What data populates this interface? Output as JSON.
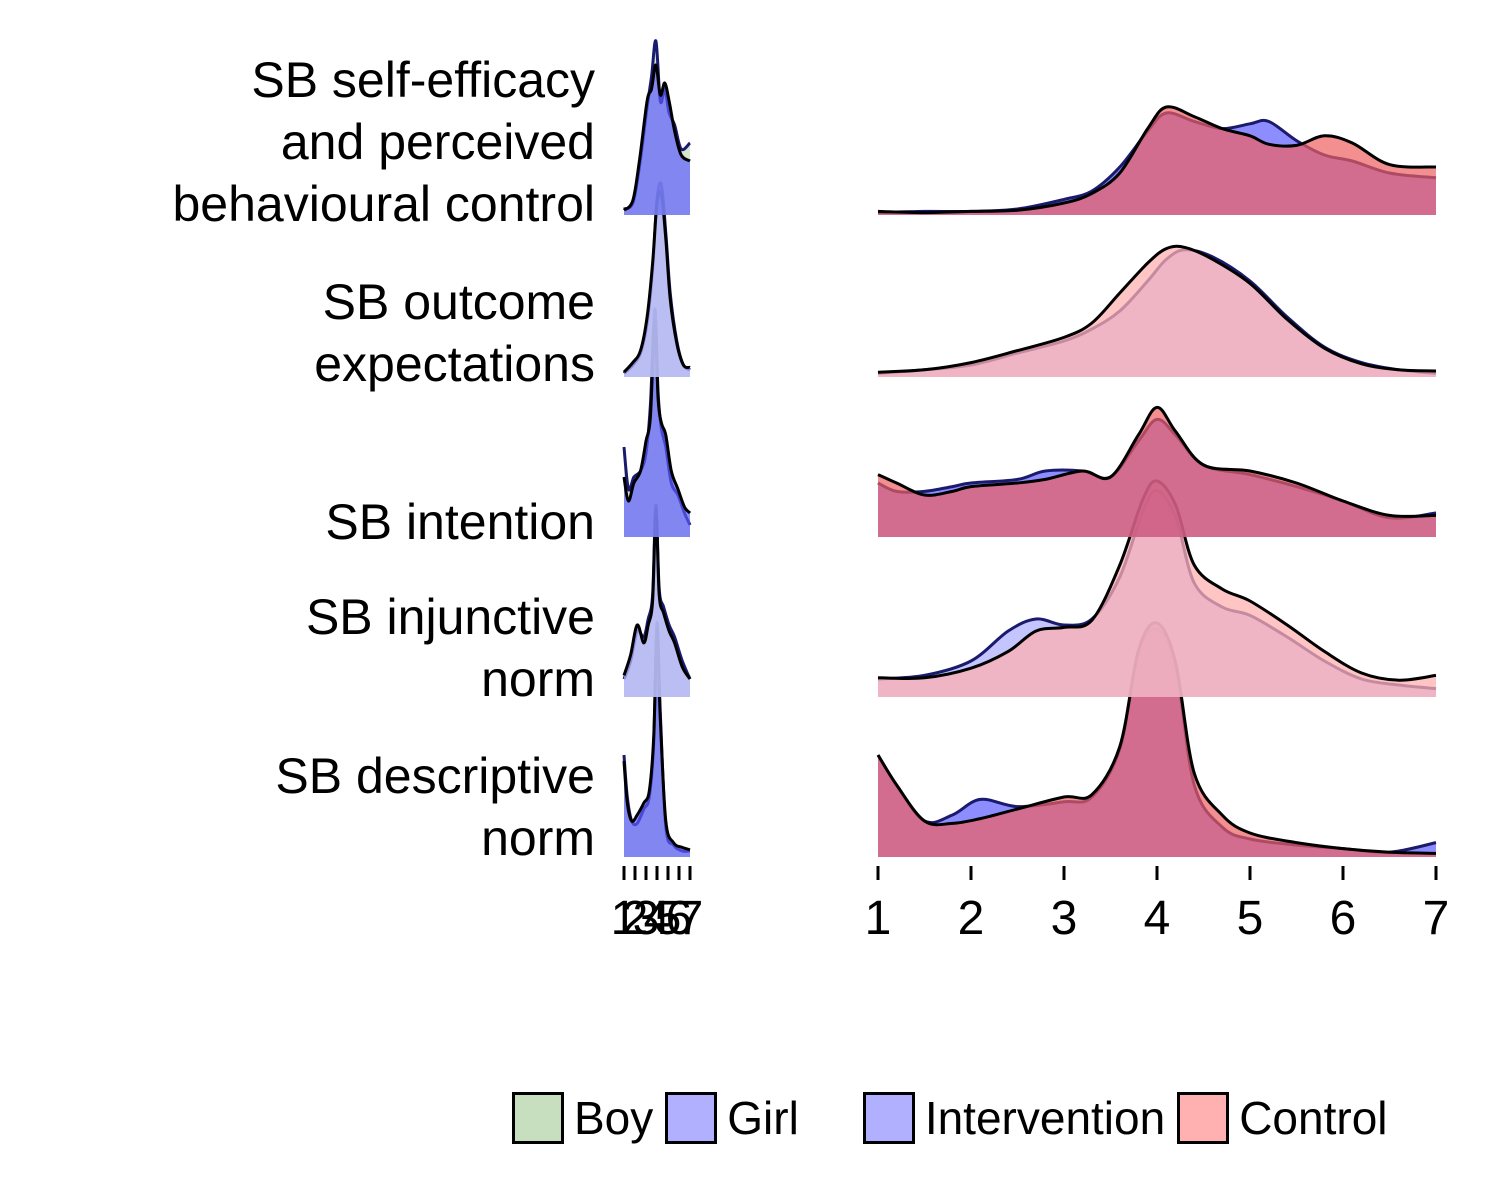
{
  "chart_data": {
    "type": "ridgeline-density",
    "rows": [
      {
        "lines": [
          "SB self-efficacy",
          "and perceived",
          "behavioural control"
        ]
      },
      {
        "lines": [
          "SB outcome",
          "expectations"
        ]
      },
      {
        "lines": [
          "SB intention"
        ]
      },
      {
        "lines": [
          "SB injunctive",
          "norm"
        ]
      },
      {
        "lines": [
          "SB descriptive",
          "norm"
        ]
      }
    ],
    "panels": [
      {
        "name": "gender",
        "xlim": [
          1,
          7
        ],
        "x_ticks": [
          1,
          2,
          3,
          4,
          5,
          6,
          7
        ],
        "tick_labels": [
          "1",
          "2",
          "3",
          "4",
          "5",
          "6",
          "7"
        ]
      },
      {
        "name": "group",
        "xlim": [
          1,
          7
        ],
        "x_ticks": [
          1,
          2,
          3,
          4,
          5,
          6,
          7
        ],
        "tick_labels": [
          "1",
          "2",
          "3",
          "4",
          "5",
          "6",
          "7"
        ]
      }
    ],
    "grid": false,
    "legend_position": "bottom",
    "legend": [
      {
        "label": "Boy",
        "color": "#c7dfbf"
      },
      {
        "label": "Girl",
        "color": "#b0b0ff"
      },
      {
        "label": "Intervention",
        "color": "#b0b0ff"
      },
      {
        "label": "Control",
        "color": "#ffb0b0"
      }
    ],
    "overlap_colors": {
      "dark": "#6129c2",
      "light": "#b194de",
      "gender_dark": "#3a55c8",
      "gender_light": "#9aa6e2"
    },
    "series": [
      {
        "panel": "group",
        "row": 0,
        "name": "Intervention",
        "color": "#5c5cff",
        "x": [
          1,
          1.5,
          2,
          2.5,
          3,
          3.3,
          3.6,
          3.9,
          4.1,
          4.4,
          4.7,
          5,
          5.2,
          5.5,
          5.8,
          6.1,
          6.5,
          7
        ],
        "y": [
          0.02,
          0.03,
          0.03,
          0.05,
          0.13,
          0.2,
          0.4,
          0.7,
          0.85,
          0.78,
          0.72,
          0.76,
          0.78,
          0.62,
          0.5,
          0.45,
          0.35,
          0.31
        ]
      },
      {
        "panel": "group",
        "row": 0,
        "name": "Control",
        "color": "#f06060",
        "x": [
          1,
          1.5,
          2,
          2.5,
          3,
          3.3,
          3.6,
          3.9,
          4.1,
          4.4,
          4.7,
          5,
          5.2,
          5.5,
          5.8,
          6.1,
          6.5,
          7
        ],
        "y": [
          0.03,
          0.02,
          0.03,
          0.04,
          0.1,
          0.18,
          0.35,
          0.72,
          0.9,
          0.82,
          0.72,
          0.66,
          0.59,
          0.58,
          0.66,
          0.6,
          0.42,
          0.4
        ]
      },
      {
        "panel": "group",
        "row": 1,
        "name": "Intervention",
        "color": "#b0b0ff",
        "x": [
          1,
          1.5,
          2,
          2.5,
          3,
          3.3,
          3.6,
          3.9,
          4.1,
          4.3,
          4.6,
          5,
          5.4,
          5.8,
          6.2,
          6.6,
          7
        ],
        "y": [
          0.03,
          0.06,
          0.1,
          0.2,
          0.3,
          0.4,
          0.55,
          0.8,
          0.98,
          1.06,
          1.0,
          0.8,
          0.5,
          0.25,
          0.12,
          0.06,
          0.03
        ]
      },
      {
        "panel": "group",
        "row": 1,
        "name": "Control",
        "color": "#ffb0b0",
        "x": [
          1,
          1.5,
          2,
          2.5,
          3,
          3.3,
          3.6,
          3.9,
          4.1,
          4.3,
          4.6,
          5,
          5.4,
          5.8,
          6.2,
          6.6,
          7
        ],
        "y": [
          0.04,
          0.06,
          0.12,
          0.22,
          0.33,
          0.45,
          0.7,
          0.95,
          1.07,
          1.08,
          0.98,
          0.78,
          0.48,
          0.24,
          0.11,
          0.06,
          0.05
        ]
      },
      {
        "panel": "group",
        "row": 2,
        "name": "Intervention",
        "color": "#5c5cff",
        "x": [
          1,
          1.2,
          1.5,
          1.8,
          2,
          2.5,
          2.8,
          3.2,
          3.5,
          3.8,
          4,
          4.2,
          4.5,
          5,
          5.5,
          6,
          6.5,
          7
        ],
        "y": [
          0.45,
          0.38,
          0.38,
          0.42,
          0.45,
          0.48,
          0.55,
          0.55,
          0.5,
          0.8,
          0.98,
          0.85,
          0.6,
          0.52,
          0.42,
          0.3,
          0.16,
          0.2
        ]
      },
      {
        "panel": "group",
        "row": 2,
        "name": "Control",
        "color": "#f06060",
        "x": [
          1,
          1.2,
          1.5,
          1.8,
          2,
          2.5,
          2.8,
          3.2,
          3.5,
          3.8,
          4,
          4.2,
          4.5,
          5,
          5.5,
          6,
          6.5,
          7
        ],
        "y": [
          0.52,
          0.45,
          0.35,
          0.38,
          0.42,
          0.45,
          0.48,
          0.55,
          0.5,
          0.85,
          1.08,
          0.88,
          0.6,
          0.55,
          0.45,
          0.3,
          0.18,
          0.18
        ]
      },
      {
        "panel": "group",
        "row": 3,
        "name": "Intervention",
        "color": "#b0b0ff",
        "x": [
          1,
          1.5,
          2,
          2.4,
          2.7,
          3,
          3.3,
          3.6,
          3.85,
          4,
          4.2,
          4.4,
          4.7,
          5,
          5.4,
          5.8,
          6.2,
          6.6,
          7
        ],
        "y": [
          0.15,
          0.18,
          0.3,
          0.55,
          0.65,
          0.6,
          0.65,
          1.0,
          1.55,
          1.72,
          1.5,
          0.95,
          0.75,
          0.68,
          0.5,
          0.3,
          0.15,
          0.1,
          0.07
        ]
      },
      {
        "panel": "group",
        "row": 3,
        "name": "Control",
        "color": "#ffb0b0",
        "x": [
          1,
          1.5,
          2,
          2.4,
          2.7,
          3,
          3.3,
          3.6,
          3.85,
          4,
          4.2,
          4.4,
          4.7,
          5,
          5.4,
          5.8,
          6.2,
          6.6,
          7
        ],
        "y": [
          0.16,
          0.16,
          0.24,
          0.38,
          0.55,
          0.58,
          0.64,
          1.1,
          1.65,
          1.8,
          1.6,
          1.1,
          0.9,
          0.8,
          0.6,
          0.38,
          0.2,
          0.14,
          0.18
        ]
      },
      {
        "panel": "group",
        "row": 4,
        "name": "Intervention",
        "color": "#5c5cff",
        "x": [
          1,
          1.2,
          1.5,
          1.8,
          2.1,
          2.5,
          3,
          3.3,
          3.6,
          3.8,
          4,
          4.2,
          4.4,
          4.7,
          5,
          5.5,
          6,
          6.5,
          7
        ],
        "y": [
          0.85,
          0.6,
          0.3,
          0.35,
          0.48,
          0.42,
          0.46,
          0.5,
          0.9,
          1.7,
          1.9,
          1.6,
          0.6,
          0.25,
          0.15,
          0.1,
          0.07,
          0.04,
          0.12
        ]
      },
      {
        "panel": "group",
        "row": 4,
        "name": "Control",
        "color": "#f06060",
        "x": [
          1,
          1.2,
          1.5,
          1.8,
          2.1,
          2.5,
          3,
          3.3,
          3.6,
          3.8,
          4,
          4.2,
          4.4,
          4.7,
          5,
          5.5,
          6,
          6.5,
          7
        ],
        "y": [
          0.85,
          0.6,
          0.3,
          0.28,
          0.32,
          0.4,
          0.5,
          0.52,
          0.92,
          1.72,
          1.95,
          1.62,
          0.7,
          0.35,
          0.2,
          0.12,
          0.07,
          0.04,
          0.03
        ]
      },
      {
        "panel": "gender",
        "row": 0,
        "name": "Boy",
        "color": "#c7dfbf",
        "x": [
          1,
          1.8,
          2.4,
          3.1,
          3.5,
          3.9,
          4.3,
          4.7,
          5.1,
          5.6,
          6.2,
          7
        ],
        "y": [
          0.05,
          0.1,
          0.4,
          0.9,
          1.15,
          1.45,
          0.95,
          1.05,
          0.85,
          0.75,
          0.55,
          0.6
        ]
      },
      {
        "panel": "gender",
        "row": 0,
        "name": "Girl",
        "color": "#5c5cff",
        "x": [
          1,
          1.8,
          2.4,
          3.1,
          3.5,
          3.9,
          4.3,
          4.7,
          5.1,
          5.6,
          6.2,
          7
        ],
        "y": [
          0.04,
          0.12,
          0.45,
          0.95,
          1.05,
          1.25,
          1.0,
          1.1,
          0.95,
          0.7,
          0.5,
          0.45
        ]
      },
      {
        "panel": "gender",
        "row": 1,
        "name": "Boy",
        "color": "#c7dfbf",
        "x": [
          1,
          1.8,
          2.5,
          3.1,
          3.6,
          4,
          4.4,
          4.8,
          5.2,
          5.8,
          6.4,
          7
        ],
        "y": [
          0.03,
          0.1,
          0.2,
          0.45,
          0.9,
          1.48,
          1.6,
          1.2,
          0.7,
          0.3,
          0.1,
          0.06
        ]
      },
      {
        "panel": "gender",
        "row": 1,
        "name": "Girl",
        "color": "#b0b0ff",
        "x": [
          1,
          1.8,
          2.5,
          3.1,
          3.6,
          4,
          4.4,
          4.8,
          5.2,
          5.8,
          6.4,
          7
        ],
        "y": [
          0.04,
          0.12,
          0.22,
          0.5,
          0.95,
          1.45,
          1.52,
          1.15,
          0.65,
          0.28,
          0.1,
          0.08
        ]
      },
      {
        "panel": "gender",
        "row": 2,
        "name": "Boy",
        "color": "#c7dfbf",
        "x": [
          1,
          1.4,
          1.9,
          2.5,
          3,
          3.4,
          3.8,
          4.1,
          4.4,
          4.8,
          5.3,
          5.9,
          6.5,
          7
        ],
        "y": [
          0.75,
          0.4,
          0.5,
          0.55,
          0.7,
          1.1,
          1.9,
          1.2,
          0.9,
          0.75,
          0.45,
          0.35,
          0.2,
          0.1
        ]
      },
      {
        "panel": "gender",
        "row": 2,
        "name": "Girl",
        "color": "#5c5cff",
        "x": [
          1,
          1.4,
          1.9,
          2.5,
          3,
          3.4,
          3.8,
          4.1,
          4.4,
          4.8,
          5.3,
          5.9,
          6.5,
          7
        ],
        "y": [
          0.5,
          0.3,
          0.45,
          0.55,
          0.8,
          1.0,
          1.8,
          1.15,
          0.95,
          0.85,
          0.55,
          0.4,
          0.25,
          0.2
        ]
      },
      {
        "panel": "gender",
        "row": 3,
        "name": "Boy",
        "color": "#c7dfbf",
        "x": [
          1,
          1.6,
          2.2,
          2.8,
          3.2,
          3.6,
          3.9,
          4.2,
          4.6,
          5.1,
          5.6,
          6.3,
          7
        ],
        "y": [
          0.15,
          0.3,
          0.55,
          0.5,
          0.65,
          0.85,
          1.6,
          0.9,
          0.75,
          0.6,
          0.5,
          0.3,
          0.15
        ]
      },
      {
        "panel": "gender",
        "row": 3,
        "name": "Girl",
        "color": "#b0b0ff",
        "x": [
          1,
          1.6,
          2.2,
          2.8,
          3.2,
          3.6,
          3.9,
          4.2,
          4.6,
          5.1,
          5.6,
          6.3,
          7
        ],
        "y": [
          0.18,
          0.35,
          0.6,
          0.45,
          0.6,
          0.8,
          1.55,
          0.85,
          0.7,
          0.55,
          0.45,
          0.25,
          0.15
        ]
      },
      {
        "panel": "gender",
        "row": 4,
        "name": "Boy",
        "color": "#c7dfbf",
        "x": [
          1,
          1.3,
          1.7,
          2.2,
          2.8,
          3.3,
          3.7,
          4.0,
          4.3,
          4.8,
          5.5,
          6.3,
          7
        ],
        "y": [
          0.85,
          0.5,
          0.3,
          0.28,
          0.4,
          0.5,
          0.95,
          1.95,
          1.2,
          0.25,
          0.1,
          0.05,
          0.05
        ]
      },
      {
        "panel": "gender",
        "row": 4,
        "name": "Girl",
        "color": "#5c5cff",
        "x": [
          1,
          1.3,
          1.7,
          2.2,
          2.8,
          3.3,
          3.7,
          4.0,
          4.3,
          4.8,
          5.5,
          6.3,
          7
        ],
        "y": [
          0.8,
          0.45,
          0.3,
          0.35,
          0.45,
          0.55,
          1.0,
          1.9,
          1.15,
          0.3,
          0.12,
          0.08,
          0.06
        ]
      }
    ]
  }
}
